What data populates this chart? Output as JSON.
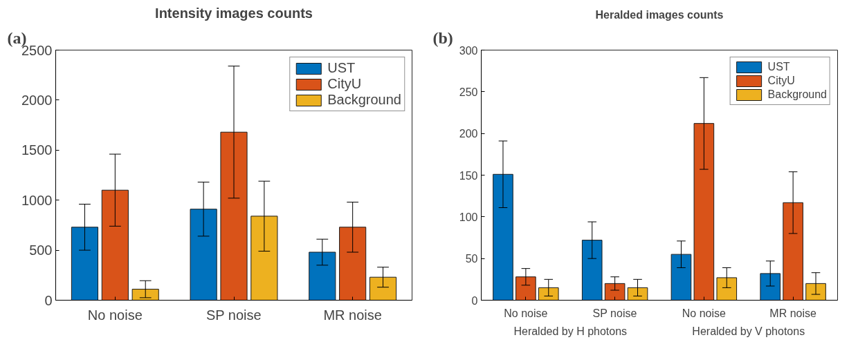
{
  "chart_data": [
    {
      "type": "bar",
      "title": "Intensity images counts",
      "categories": [
        "No noise",
        "SP noise",
        "MR noise"
      ],
      "series": [
        {
          "name": "UST",
          "color": "#0072bd",
          "values": [
            730,
            910,
            480
          ],
          "errors": [
            230,
            270,
            130
          ]
        },
        {
          "name": "CityU",
          "color": "#d95319",
          "values": [
            1100,
            1680,
            730
          ],
          "errors": [
            360,
            660,
            250
          ]
        },
        {
          "name": "Background",
          "color": "#edb120",
          "values": [
            110,
            840,
            230
          ],
          "errors": [
            85,
            350,
            100
          ]
        }
      ],
      "ylim": [
        0,
        2500
      ],
      "yticks": [
        0,
        500,
        1000,
        1500,
        2000,
        2500
      ],
      "legend": "top right",
      "annotations": [
        "(a)"
      ]
    },
    {
      "type": "bar",
      "title": "Heralded images counts",
      "categories": [
        "No noise",
        "SP noise",
        "No noise",
        "MR noise"
      ],
      "series": [
        {
          "name": "UST",
          "color": "#0072bd",
          "values": [
            151,
            72,
            55,
            32
          ],
          "errors": [
            40,
            22,
            16,
            15
          ]
        },
        {
          "name": "CityU",
          "color": "#d95319",
          "values": [
            28,
            20,
            212,
            117
          ],
          "errors": [
            10,
            8,
            55,
            37
          ]
        },
        {
          "name": "Background",
          "color": "#edb120",
          "values": [
            15,
            15,
            27,
            20
          ],
          "errors": [
            10,
            10,
            12,
            13
          ]
        }
      ],
      "ylim": [
        0,
        300
      ],
      "yticks": [
        0,
        50,
        100,
        150,
        200,
        250,
        300
      ],
      "legend": "top right",
      "annotations": [
        "(b)",
        "Heralded by H photons",
        "Heralded by V photons"
      ]
    }
  ]
}
